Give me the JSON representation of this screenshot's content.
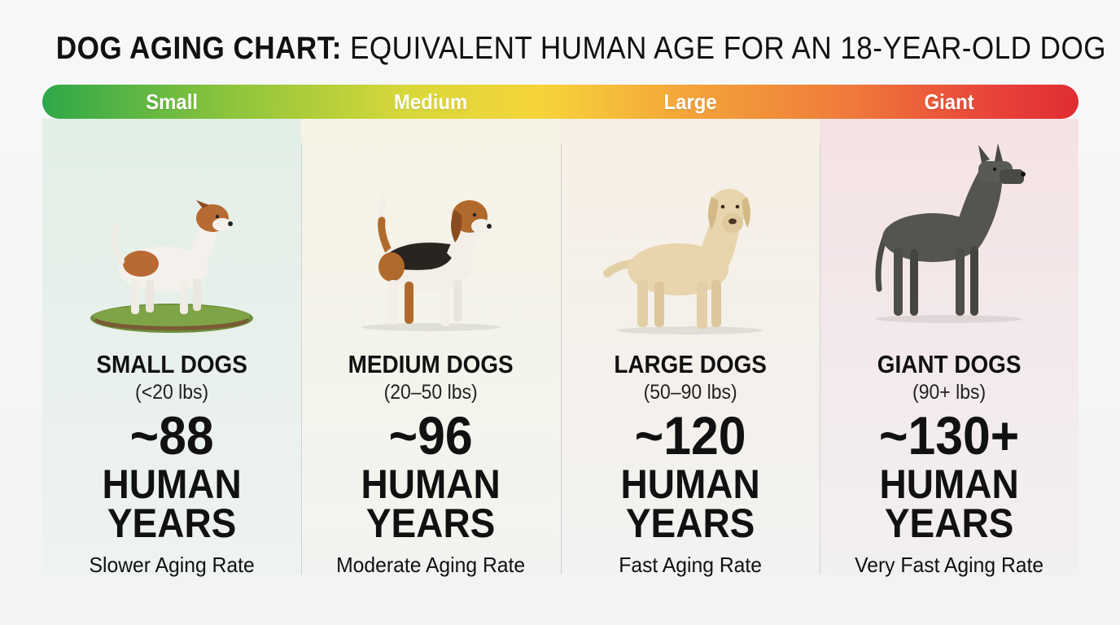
{
  "title": {
    "bold_part": "DOG AGING CHART:",
    "regular_part": " EQUIVALENT HUMAN AGE FOR AN 18-YEAR-OLD DOG"
  },
  "size_bar": {
    "labels": [
      "Small",
      "Medium",
      "Large",
      "Giant"
    ],
    "colors": [
      "#2ea84a",
      "#f6d43a",
      "#f4a53a",
      "#e02d33"
    ]
  },
  "categories": [
    {
      "name": "SMALL DOGS",
      "range": "(<20 lbs)",
      "age": "~88",
      "unit_line1": "HUMAN",
      "unit_line2": "YEARS",
      "rate": "Slower Aging Rate",
      "icon": "small-dog-icon"
    },
    {
      "name": "MEDIUM DOGS",
      "range": "(20–50 lbs)",
      "age": "~96",
      "unit_line1": "HUMAN",
      "unit_line2": "YEARS",
      "rate": "Moderate Aging Rate",
      "icon": "medium-dog-icon"
    },
    {
      "name": "LARGE DOGS",
      "range": "(50–90 lbs)",
      "age": "~120",
      "unit_line1": "HUMAN",
      "unit_line2": "YEARS",
      "rate": "Fast Aging Rate",
      "icon": "large-dog-icon"
    },
    {
      "name": "GIANT DOGS",
      "range": "(90+ lbs)",
      "age": "~130+",
      "unit_line1": "HUMAN",
      "unit_line2": "YEARS",
      "rate": "Very Fast Aging Rate",
      "icon": "giant-dog-icon"
    }
  ]
}
